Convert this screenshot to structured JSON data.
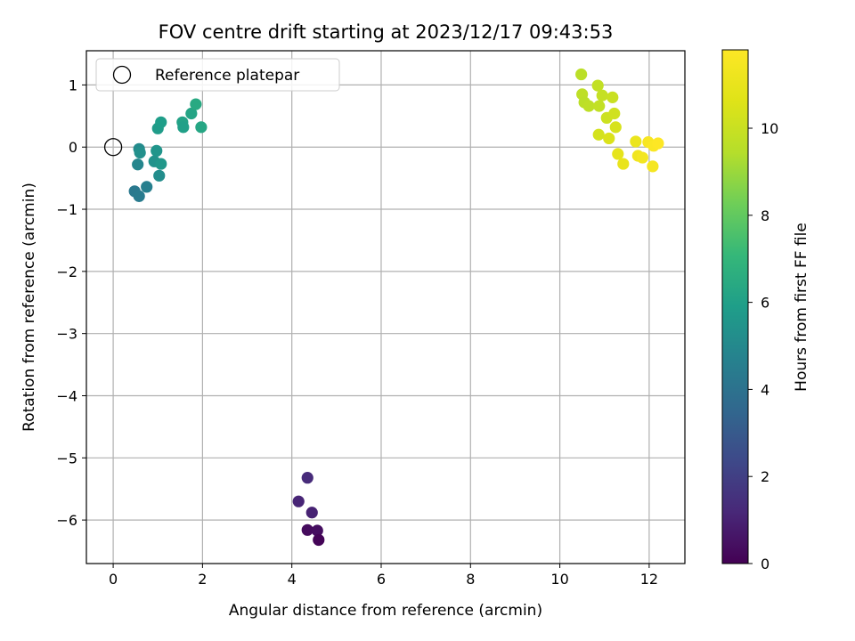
{
  "chart_data": {
    "type": "scatter",
    "title": "FOV centre drift starting at 2023/12/17 09:43:53",
    "xlabel": "Angular distance from reference (arcmin)",
    "ylabel": "Rotation from reference (arcmin)",
    "xlim": [
      -0.6,
      12.8
    ],
    "ylim": [
      -6.7,
      1.55
    ],
    "xticks": [
      0,
      2,
      4,
      6,
      8,
      10,
      12
    ],
    "yticks": [
      1,
      0,
      -1,
      -2,
      -3,
      -4,
      -5,
      -6
    ],
    "grid": true,
    "colormap": "viridis",
    "colorbar": {
      "label": "Hours from first FF file",
      "range": [
        0,
        11.8
      ],
      "ticks": [
        0,
        2,
        4,
        6,
        8,
        10
      ]
    },
    "legend": {
      "location": "upper-left",
      "entries": [
        {
          "label": "Reference platepar",
          "marker": "open-circle"
        }
      ]
    },
    "reference_point": {
      "x": 0,
      "y": 0
    },
    "points": [
      {
        "x": 4.35,
        "y": -5.32,
        "t": 1.3
      },
      {
        "x": 4.15,
        "y": -5.7,
        "t": 1.1
      },
      {
        "x": 4.45,
        "y": -5.88,
        "t": 1.0
      },
      {
        "x": 4.35,
        "y": -6.16,
        "t": 0.3
      },
      {
        "x": 4.57,
        "y": -6.17,
        "t": 0.4
      },
      {
        "x": 4.6,
        "y": -6.32,
        "t": 0.1
      },
      {
        "x": 0.58,
        "y": -0.03,
        "t": 5.1
      },
      {
        "x": 0.6,
        "y": -0.09,
        "t": 5.3
      },
      {
        "x": 0.55,
        "y": -0.28,
        "t": 4.9
      },
      {
        "x": 0.97,
        "y": -0.06,
        "t": 5.5
      },
      {
        "x": 0.92,
        "y": -0.23,
        "t": 5.4
      },
      {
        "x": 1.07,
        "y": -0.27,
        "t": 5.6
      },
      {
        "x": 1.03,
        "y": -0.46,
        "t": 5.2
      },
      {
        "x": 0.75,
        "y": -0.64,
        "t": 4.6
      },
      {
        "x": 0.48,
        "y": -0.71,
        "t": 4.3
      },
      {
        "x": 0.58,
        "y": -0.79,
        "t": 4.4
      },
      {
        "x": 1.0,
        "y": 0.3,
        "t": 5.8
      },
      {
        "x": 1.07,
        "y": 0.4,
        "t": 5.9
      },
      {
        "x": 1.55,
        "y": 0.4,
        "t": 6.1
      },
      {
        "x": 1.57,
        "y": 0.32,
        "t": 6.0
      },
      {
        "x": 1.75,
        "y": 0.54,
        "t": 6.2
      },
      {
        "x": 1.85,
        "y": 0.69,
        "t": 6.4
      },
      {
        "x": 1.97,
        "y": 0.32,
        "t": 6.3
      },
      {
        "x": 10.48,
        "y": 1.17,
        "t": 9.6
      },
      {
        "x": 10.85,
        "y": 0.99,
        "t": 9.8
      },
      {
        "x": 10.5,
        "y": 0.85,
        "t": 9.7
      },
      {
        "x": 10.95,
        "y": 0.83,
        "t": 9.9
      },
      {
        "x": 11.18,
        "y": 0.8,
        "t": 10.0
      },
      {
        "x": 10.55,
        "y": 0.72,
        "t": 9.6
      },
      {
        "x": 10.65,
        "y": 0.66,
        "t": 9.7
      },
      {
        "x": 10.88,
        "y": 0.66,
        "t": 9.8
      },
      {
        "x": 11.05,
        "y": 0.47,
        "t": 10.1
      },
      {
        "x": 11.22,
        "y": 0.54,
        "t": 10.2
      },
      {
        "x": 11.25,
        "y": 0.32,
        "t": 10.4
      },
      {
        "x": 10.87,
        "y": 0.2,
        "t": 10.3
      },
      {
        "x": 11.1,
        "y": 0.14,
        "t": 10.5
      },
      {
        "x": 11.3,
        "y": -0.11,
        "t": 10.9
      },
      {
        "x": 11.42,
        "y": -0.27,
        "t": 11.0
      },
      {
        "x": 11.7,
        "y": 0.09,
        "t": 11.1
      },
      {
        "x": 11.75,
        "y": -0.14,
        "t": 11.3
      },
      {
        "x": 11.85,
        "y": -0.17,
        "t": 11.4
      },
      {
        "x": 11.98,
        "y": 0.08,
        "t": 11.6
      },
      {
        "x": 12.1,
        "y": 0.02,
        "t": 11.7
      },
      {
        "x": 12.2,
        "y": 0.06,
        "t": 11.8
      },
      {
        "x": 12.08,
        "y": -0.31,
        "t": 11.5
      }
    ]
  }
}
